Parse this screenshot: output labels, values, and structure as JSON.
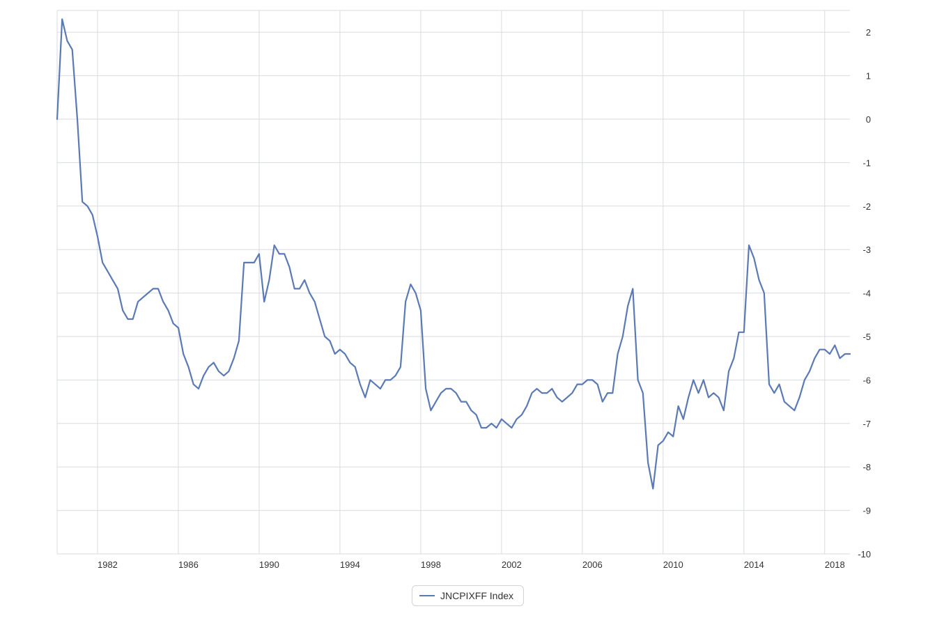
{
  "chart_data": {
    "type": "line",
    "title": "",
    "xlabel": "",
    "ylabel": "",
    "xlim": [
      1980.0,
      2019.25
    ],
    "ylim": [
      -10,
      2.5
    ],
    "x_ticks": [
      1982,
      1986,
      1990,
      1994,
      1998,
      2002,
      2006,
      2010,
      2014,
      2018
    ],
    "y_ticks": [
      2,
      1,
      0,
      -1,
      -2,
      -3,
      -4,
      -5,
      -6,
      -7,
      -8,
      -9,
      -10
    ],
    "grid": true,
    "legend_position": "bottom-center",
    "color": "#5b79b5",
    "series": [
      {
        "name": "JNCPIXFF Index",
        "points": [
          [
            1980.0,
            0.0
          ],
          [
            1980.25,
            2.3
          ],
          [
            1980.5,
            1.8
          ],
          [
            1980.75,
            1.6
          ],
          [
            1981.0,
            0.0
          ],
          [
            1981.25,
            -1.9
          ],
          [
            1981.5,
            -2.0
          ],
          [
            1981.75,
            -2.2
          ],
          [
            1982.0,
            -2.7
          ],
          [
            1982.25,
            -3.3
          ],
          [
            1982.5,
            -3.5
          ],
          [
            1982.75,
            -3.7
          ],
          [
            1983.0,
            -3.9
          ],
          [
            1983.25,
            -4.4
          ],
          [
            1983.5,
            -4.6
          ],
          [
            1983.75,
            -4.6
          ],
          [
            1984.0,
            -4.2
          ],
          [
            1984.25,
            -4.1
          ],
          [
            1984.5,
            -4.0
          ],
          [
            1984.75,
            -3.9
          ],
          [
            1985.0,
            -3.9
          ],
          [
            1985.25,
            -4.2
          ],
          [
            1985.5,
            -4.4
          ],
          [
            1985.75,
            -4.7
          ],
          [
            1986.0,
            -4.8
          ],
          [
            1986.25,
            -5.4
          ],
          [
            1986.5,
            -5.7
          ],
          [
            1986.75,
            -6.1
          ],
          [
            1987.0,
            -6.2
          ],
          [
            1987.25,
            -5.9
          ],
          [
            1987.5,
            -5.7
          ],
          [
            1987.75,
            -5.6
          ],
          [
            1988.0,
            -5.8
          ],
          [
            1988.25,
            -5.9
          ],
          [
            1988.5,
            -5.8
          ],
          [
            1988.75,
            -5.5
          ],
          [
            1989.0,
            -5.1
          ],
          [
            1989.25,
            -3.3
          ],
          [
            1989.5,
            -3.3
          ],
          [
            1989.75,
            -3.3
          ],
          [
            1990.0,
            -3.1
          ],
          [
            1990.25,
            -4.2
          ],
          [
            1990.5,
            -3.7
          ],
          [
            1990.75,
            -2.9
          ],
          [
            1991.0,
            -3.1
          ],
          [
            1991.25,
            -3.1
          ],
          [
            1991.5,
            -3.4
          ],
          [
            1991.75,
            -3.9
          ],
          [
            1992.0,
            -3.9
          ],
          [
            1992.25,
            -3.7
          ],
          [
            1992.5,
            -4.0
          ],
          [
            1992.75,
            -4.2
          ],
          [
            1993.0,
            -4.6
          ],
          [
            1993.25,
            -5.0
          ],
          [
            1993.5,
            -5.1
          ],
          [
            1993.75,
            -5.4
          ],
          [
            1994.0,
            -5.3
          ],
          [
            1994.25,
            -5.4
          ],
          [
            1994.5,
            -5.6
          ],
          [
            1994.75,
            -5.7
          ],
          [
            1995.0,
            -6.1
          ],
          [
            1995.25,
            -6.4
          ],
          [
            1995.5,
            -6.0
          ],
          [
            1995.75,
            -6.1
          ],
          [
            1996.0,
            -6.2
          ],
          [
            1996.25,
            -6.0
          ],
          [
            1996.5,
            -6.0
          ],
          [
            1996.75,
            -5.9
          ],
          [
            1997.0,
            -5.7
          ],
          [
            1997.25,
            -4.2
          ],
          [
            1997.5,
            -3.8
          ],
          [
            1997.75,
            -4.0
          ],
          [
            1998.0,
            -4.4
          ],
          [
            1998.25,
            -6.2
          ],
          [
            1998.5,
            -6.7
          ],
          [
            1998.75,
            -6.5
          ],
          [
            1999.0,
            -6.3
          ],
          [
            1999.25,
            -6.2
          ],
          [
            1999.5,
            -6.2
          ],
          [
            1999.75,
            -6.3
          ],
          [
            2000.0,
            -6.5
          ],
          [
            2000.25,
            -6.5
          ],
          [
            2000.5,
            -6.7
          ],
          [
            2000.75,
            -6.8
          ],
          [
            2001.0,
            -7.1
          ],
          [
            2001.25,
            -7.1
          ],
          [
            2001.5,
            -7.0
          ],
          [
            2001.75,
            -7.1
          ],
          [
            2002.0,
            -6.9
          ],
          [
            2002.25,
            -7.0
          ],
          [
            2002.5,
            -7.1
          ],
          [
            2002.75,
            -6.9
          ],
          [
            2003.0,
            -6.8
          ],
          [
            2003.25,
            -6.6
          ],
          [
            2003.5,
            -6.3
          ],
          [
            2003.75,
            -6.2
          ],
          [
            2004.0,
            -6.3
          ],
          [
            2004.25,
            -6.3
          ],
          [
            2004.5,
            -6.2
          ],
          [
            2004.75,
            -6.4
          ],
          [
            2005.0,
            -6.5
          ],
          [
            2005.25,
            -6.4
          ],
          [
            2005.5,
            -6.3
          ],
          [
            2005.75,
            -6.1
          ],
          [
            2006.0,
            -6.1
          ],
          [
            2006.25,
            -6.0
          ],
          [
            2006.5,
            -6.0
          ],
          [
            2006.75,
            -6.1
          ],
          [
            2007.0,
            -6.5
          ],
          [
            2007.25,
            -6.3
          ],
          [
            2007.5,
            -6.3
          ],
          [
            2007.75,
            -5.4
          ],
          [
            2008.0,
            -5.0
          ],
          [
            2008.25,
            -4.3
          ],
          [
            2008.5,
            -3.9
          ],
          [
            2008.75,
            -6.0
          ],
          [
            2009.0,
            -6.3
          ],
          [
            2009.25,
            -7.9
          ],
          [
            2009.5,
            -8.5
          ],
          [
            2009.75,
            -7.5
          ],
          [
            2010.0,
            -7.4
          ],
          [
            2010.25,
            -7.2
          ],
          [
            2010.5,
            -7.3
          ],
          [
            2010.75,
            -6.6
          ],
          [
            2011.0,
            -6.9
          ],
          [
            2011.25,
            -6.4
          ],
          [
            2011.5,
            -6.0
          ],
          [
            2011.75,
            -6.3
          ],
          [
            2012.0,
            -6.0
          ],
          [
            2012.25,
            -6.4
          ],
          [
            2012.5,
            -6.3
          ],
          [
            2012.75,
            -6.4
          ],
          [
            2013.0,
            -6.7
          ],
          [
            2013.25,
            -5.8
          ],
          [
            2013.5,
            -5.5
          ],
          [
            2013.75,
            -4.9
          ],
          [
            2014.0,
            -4.9
          ],
          [
            2014.25,
            -2.9
          ],
          [
            2014.5,
            -3.2
          ],
          [
            2014.75,
            -3.7
          ],
          [
            2015.0,
            -4.0
          ],
          [
            2015.25,
            -6.1
          ],
          [
            2015.5,
            -6.3
          ],
          [
            2015.75,
            -6.1
          ],
          [
            2016.0,
            -6.5
          ],
          [
            2016.25,
            -6.6
          ],
          [
            2016.5,
            -6.7
          ],
          [
            2016.75,
            -6.4
          ],
          [
            2017.0,
            -6.0
          ],
          [
            2017.25,
            -5.8
          ],
          [
            2017.5,
            -5.5
          ],
          [
            2017.75,
            -5.3
          ],
          [
            2018.0,
            -5.3
          ],
          [
            2018.25,
            -5.4
          ],
          [
            2018.5,
            -5.2
          ],
          [
            2018.75,
            -5.5
          ],
          [
            2019.0,
            -5.4
          ],
          [
            2019.25,
            -5.4
          ]
        ]
      }
    ]
  },
  "legend": {
    "label": "JNCPIXFF Index"
  }
}
